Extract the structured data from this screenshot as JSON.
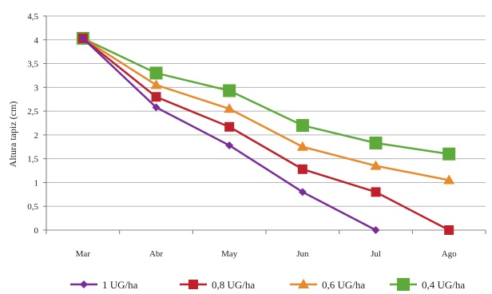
{
  "chart_data": {
    "type": "line",
    "title": "",
    "xlabel": "",
    "ylabel": "Altura tapiz (cm)",
    "categories": [
      "Mar",
      "Abr",
      "May",
      "Jun",
      "Jul",
      "Ago"
    ],
    "ylim": [
      0,
      4.5
    ],
    "yticks": [
      "0",
      "0,5",
      "1",
      "1,5",
      "2",
      "2,5",
      "3",
      "3,5",
      "4",
      "4,5"
    ],
    "grid": "horizontal",
    "legend_position": "bottom",
    "series": [
      {
        "name": "1 UG/ha",
        "color": "#7B2C9B",
        "marker": "diamond",
        "values": [
          4.03,
          2.58,
          1.78,
          0.8,
          0.0,
          null
        ]
      },
      {
        "name": "0,8 UG/ha",
        "color": "#C0202A",
        "marker": "square",
        "values": [
          4.03,
          2.8,
          2.17,
          1.28,
          0.8,
          0.0
        ]
      },
      {
        "name": "0,6 UG/ha",
        "color": "#E88A2C",
        "marker": "triangle",
        "values": [
          4.03,
          3.05,
          2.55,
          1.75,
          1.35,
          1.05
        ]
      },
      {
        "name": "0,4 UG/ha",
        "color": "#5DAA3A",
        "marker": "square-big",
        "values": [
          4.03,
          3.3,
          2.93,
          2.2,
          1.83,
          1.6
        ]
      }
    ]
  }
}
